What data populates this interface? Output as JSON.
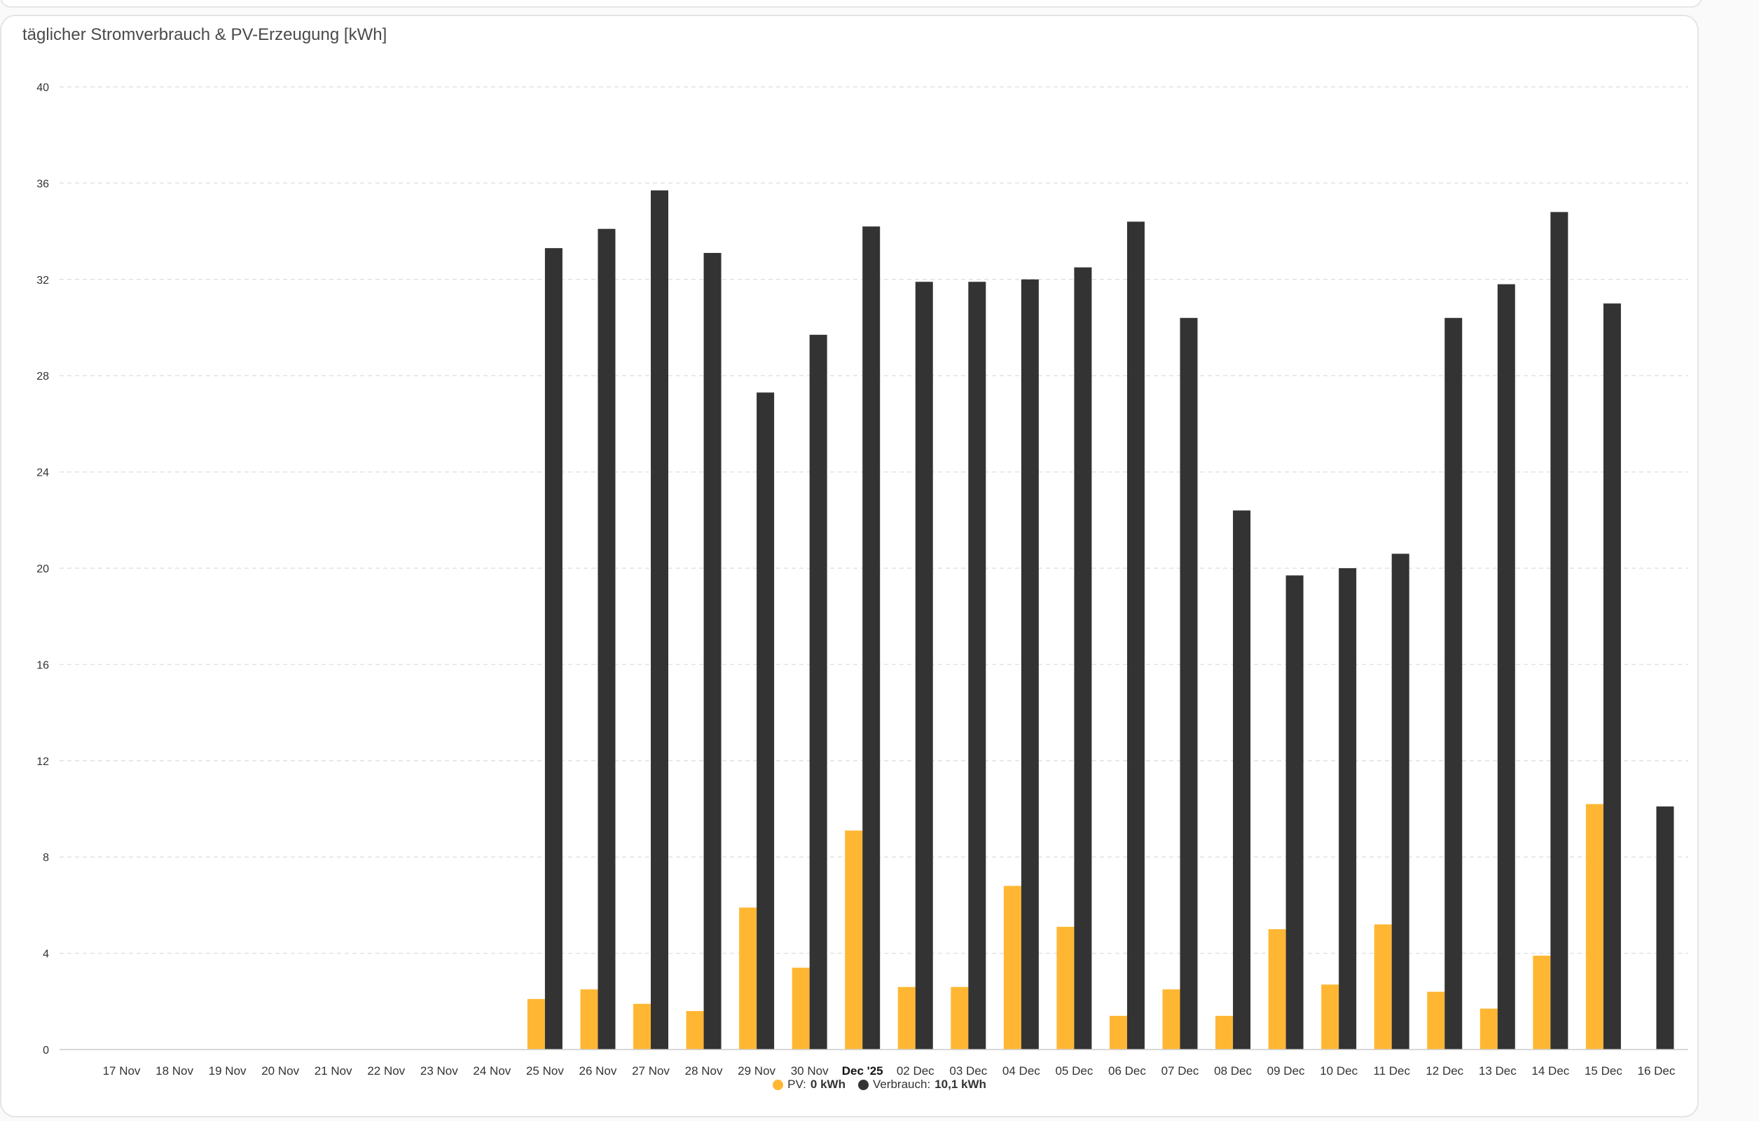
{
  "colors": {
    "pv": "#ffb733",
    "consumption": "#333333",
    "grid": "#e2e2e2",
    "axis": "#cccccc",
    "tick_text": "#333333"
  },
  "card": {
    "title": "täglicher Stromverbrauch & PV-Erzeugung [kWh]"
  },
  "legend": {
    "items": [
      {
        "label": "PV:",
        "value": "0 kWh",
        "color": "#ffb733"
      },
      {
        "label": "Verbrauch:",
        "value": "10,1 kWh",
        "color": "#333333"
      }
    ]
  },
  "chart_data": {
    "type": "bar",
    "title": "täglicher Stromverbrauch & PV-Erzeugung [kWh]",
    "xlabel": "",
    "ylabel": "",
    "ylim": [
      0,
      40
    ],
    "yticks": [
      0,
      4,
      8,
      12,
      16,
      20,
      24,
      28,
      32,
      36,
      40
    ],
    "grid": true,
    "legend_position": "bottom-center",
    "categories": [
      "17 Nov",
      "18 Nov",
      "19 Nov",
      "20 Nov",
      "21 Nov",
      "22 Nov",
      "23 Nov",
      "24 Nov",
      "25 Nov",
      "26 Nov",
      "27 Nov",
      "28 Nov",
      "29 Nov",
      "30 Nov",
      "Dec '25",
      "02 Dec",
      "03 Dec",
      "04 Dec",
      "05 Dec",
      "06 Dec",
      "07 Dec",
      "08 Dec",
      "09 Dec",
      "10 Dec",
      "11 Dec",
      "12 Dec",
      "13 Dec",
      "14 Dec",
      "15 Dec",
      "16 Dec"
    ],
    "bold_categories": [
      "Dec '25"
    ],
    "series": [
      {
        "name": "PV",
        "color": "#ffb733",
        "values": [
          0,
          0,
          0,
          0,
          0,
          0,
          0,
          0,
          2.1,
          2.5,
          1.9,
          1.6,
          5.9,
          3.4,
          9.1,
          2.6,
          2.6,
          6.8,
          5.1,
          1.4,
          2.5,
          1.4,
          5.0,
          2.7,
          5.2,
          2.4,
          1.7,
          3.9,
          10.2,
          0
        ]
      },
      {
        "name": "Verbrauch",
        "color": "#333333",
        "values": [
          0,
          0,
          0,
          0,
          0,
          0,
          0,
          0,
          33.3,
          34.1,
          35.7,
          33.1,
          27.3,
          29.7,
          34.2,
          31.9,
          31.9,
          32.0,
          32.5,
          34.4,
          30.4,
          22.4,
          19.7,
          20.0,
          20.6,
          30.4,
          31.8,
          34.8,
          31.0,
          10.1
        ]
      }
    ]
  }
}
